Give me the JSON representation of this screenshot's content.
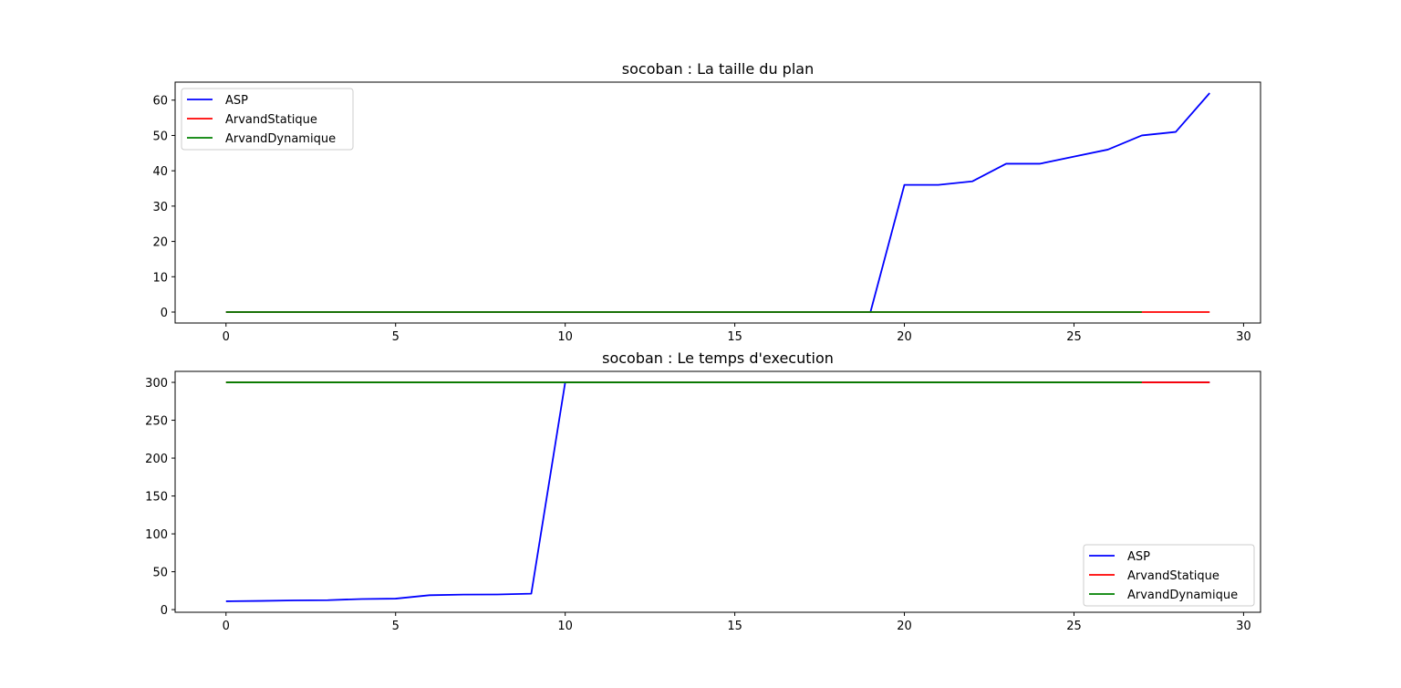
{
  "chart_data": [
    {
      "type": "line",
      "title": "socoban : La taille du plan",
      "xlabel": "",
      "ylabel": "",
      "xlim": [
        -1.5,
        30.5
      ],
      "ylim": [
        -3.1,
        65.1
      ],
      "xticks": [
        0,
        5,
        10,
        15,
        20,
        25,
        30
      ],
      "yticks": [
        0,
        10,
        20,
        30,
        40,
        50,
        60
      ],
      "grid": false,
      "legend_loc": "upper left",
      "series": [
        {
          "name": "ASP",
          "color": "#0000ff",
          "x": [
            0,
            1,
            2,
            3,
            4,
            5,
            6,
            7,
            8,
            9,
            10,
            11,
            12,
            13,
            14,
            15,
            16,
            17,
            18,
            19,
            20,
            21,
            22,
            23,
            24,
            25,
            26,
            27,
            28,
            29
          ],
          "y": [
            0,
            0,
            0,
            0,
            0,
            0,
            0,
            0,
            0,
            0,
            0,
            0,
            0,
            0,
            0,
            0,
            0,
            0,
            0,
            0,
            36,
            36,
            37,
            42,
            42,
            44,
            46,
            50,
            51,
            62
          ]
        },
        {
          "name": "ArvandStatique",
          "color": "#ff0000",
          "x": [
            0,
            1,
            2,
            3,
            4,
            5,
            6,
            7,
            8,
            9,
            10,
            11,
            12,
            13,
            14,
            15,
            16,
            17,
            18,
            19,
            20,
            21,
            22,
            23,
            24,
            25,
            26,
            27,
            28,
            29
          ],
          "y": [
            0,
            0,
            0,
            0,
            0,
            0,
            0,
            0,
            0,
            0,
            0,
            0,
            0,
            0,
            0,
            0,
            0,
            0,
            0,
            0,
            0,
            0,
            0,
            0,
            0,
            0,
            0,
            0,
            0,
            0
          ]
        },
        {
          "name": "ArvandDynamique",
          "color": "#008000",
          "x": [
            0,
            1,
            2,
            3,
            4,
            5,
            6,
            7,
            8,
            9,
            10,
            11,
            12,
            13,
            14,
            15,
            16,
            17,
            18,
            19,
            20,
            21,
            22,
            23,
            24,
            25,
            26,
            27
          ],
          "y": [
            0,
            0,
            0,
            0,
            0,
            0,
            0,
            0,
            0,
            0,
            0,
            0,
            0,
            0,
            0,
            0,
            0,
            0,
            0,
            0,
            0,
            0,
            0,
            0,
            0,
            0,
            0,
            0
          ]
        }
      ]
    },
    {
      "type": "line",
      "title": "socoban : Le temps d'execution",
      "xlabel": "",
      "ylabel": "",
      "xlim": [
        -1.5,
        30.5
      ],
      "ylim": [
        -3.5,
        314.5
      ],
      "xticks": [
        0,
        5,
        10,
        15,
        20,
        25,
        30
      ],
      "yticks": [
        0,
        50,
        100,
        150,
        200,
        250,
        300
      ],
      "grid": false,
      "legend_loc": "lower right",
      "series": [
        {
          "name": "ASP",
          "color": "#0000ff",
          "x": [
            0,
            1,
            2,
            3,
            4,
            5,
            6,
            7,
            8,
            9,
            10,
            11,
            12,
            13,
            14,
            15,
            16,
            17,
            18,
            19,
            20,
            21,
            22,
            23,
            24,
            25,
            26,
            27,
            28,
            29
          ],
          "y": [
            11,
            11.5,
            12.2,
            12.5,
            14,
            14.5,
            19,
            19.8,
            20,
            21,
            300,
            300,
            300,
            300,
            300,
            300,
            300,
            300,
            300,
            300,
            300,
            300,
            300,
            300,
            300,
            300,
            300,
            300,
            300,
            300
          ]
        },
        {
          "name": "ArvandStatique",
          "color": "#ff0000",
          "x": [
            0,
            1,
            2,
            3,
            4,
            5,
            6,
            7,
            8,
            9,
            10,
            11,
            12,
            13,
            14,
            15,
            16,
            17,
            18,
            19,
            20,
            21,
            22,
            23,
            24,
            25,
            26,
            27,
            28,
            29
          ],
          "y": [
            300,
            300,
            300,
            300,
            300,
            300,
            300,
            300,
            300,
            300,
            300,
            300,
            300,
            300,
            300,
            300,
            300,
            300,
            300,
            300,
            300,
            300,
            300,
            300,
            300,
            300,
            300,
            300,
            300,
            300
          ]
        },
        {
          "name": "ArvandDynamique",
          "color": "#008000",
          "x": [
            0,
            1,
            2,
            3,
            4,
            5,
            6,
            7,
            8,
            9,
            10,
            11,
            12,
            13,
            14,
            15,
            16,
            17,
            18,
            19,
            20,
            21,
            22,
            23,
            24,
            25,
            26,
            27
          ],
          "y": [
            300,
            300,
            300,
            300,
            300,
            300,
            300,
            300,
            300,
            300,
            300,
            300,
            300,
            300,
            300,
            300,
            300,
            300,
            300,
            300,
            300,
            300,
            300,
            300,
            300,
            300,
            300,
            300
          ]
        }
      ]
    }
  ]
}
